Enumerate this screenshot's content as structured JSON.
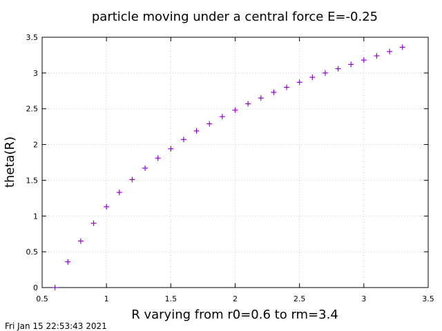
{
  "chart_data": {
    "type": "scatter",
    "title": "particle moving under a central force E=-0.25",
    "xlabel": "R varying from r0=0.6 to rm=3.4",
    "ylabel": "theta(R)",
    "xlim": [
      0.5,
      3.5
    ],
    "ylim": [
      0,
      3.5
    ],
    "xticks": [
      "0.5",
      "1",
      "1.5",
      "2",
      "2.5",
      "3",
      "3.5"
    ],
    "yticks": [
      "0",
      "0.5",
      "1",
      "1.5",
      "2",
      "2.5",
      "3",
      "3.5"
    ],
    "grid": true,
    "legend": "none",
    "marker": "plus",
    "color": "#9400d3",
    "series": [
      {
        "x": [
          0.6,
          0.7,
          0.8,
          0.9,
          1.0,
          1.1,
          1.2,
          1.3,
          1.4,
          1.5,
          1.6,
          1.7,
          1.8,
          1.9,
          2.0,
          2.1,
          2.2,
          2.3,
          2.4,
          2.5,
          2.6,
          2.7,
          2.8,
          2.9,
          3.0,
          3.1,
          3.2,
          3.3
        ],
        "y": [
          0.0,
          0.36,
          0.65,
          0.9,
          1.13,
          1.33,
          1.51,
          1.67,
          1.81,
          1.94,
          2.07,
          2.19,
          2.29,
          2.39,
          2.48,
          2.57,
          2.65,
          2.73,
          2.8,
          2.87,
          2.94,
          3.0,
          3.06,
          3.12,
          3.18,
          3.24,
          3.3,
          3.36
        ]
      }
    ]
  },
  "timestamp": "Fri Jan 15 22:53:43 2021"
}
